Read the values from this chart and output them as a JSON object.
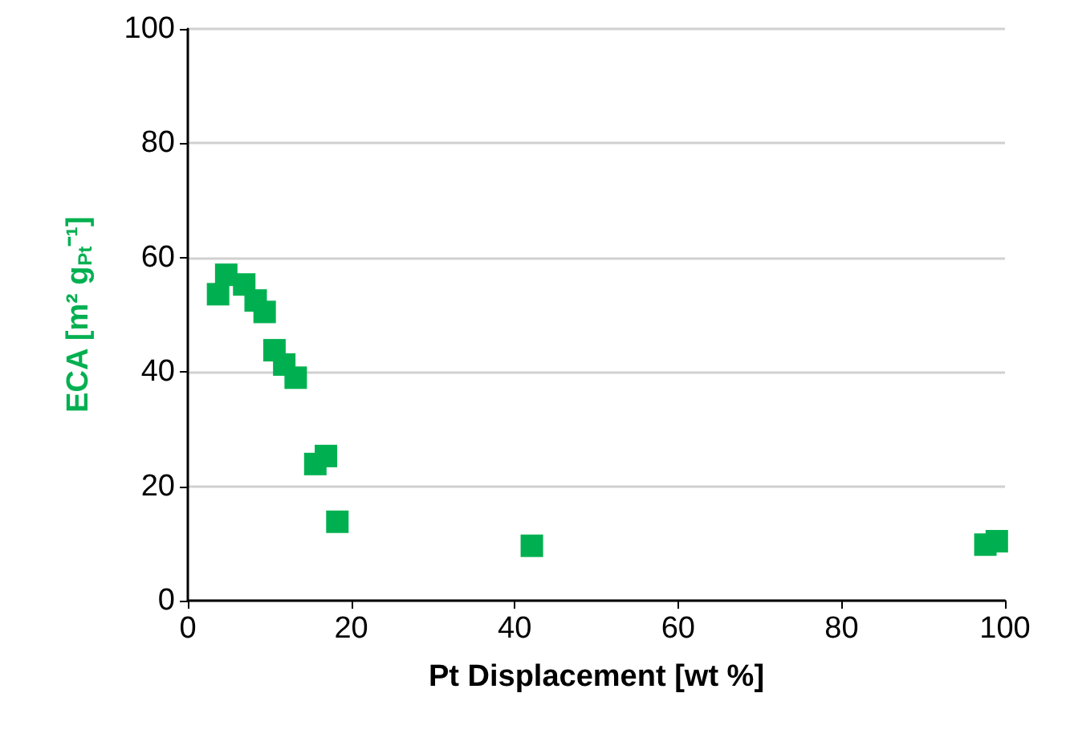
{
  "chart_data": {
    "type": "scatter",
    "xlabel": "Pt Displacement [wt %]",
    "ylabel": "ECA [m² g$_{Pt}$⁻¹]",
    "x": [
      3.7,
      4.7,
      6.9,
      8.3,
      9.4,
      10.6,
      11.8,
      13.2,
      15.6,
      16.9,
      18.3,
      42.1,
      97.6,
      99
    ],
    "series": [
      {
        "color": "#00b050",
        "values": [
          53.6,
          57,
          55.3,
          52.5,
          50.5,
          43.8,
          41.3,
          39,
          23.9,
          25.3,
          13.8,
          9.6,
          9.8,
          10.4
        ]
      }
    ],
    "xlim": [
      0,
      100
    ],
    "xticks": [
      0,
      20,
      40,
      60,
      80,
      100
    ],
    "ylim": [
      0,
      100
    ],
    "yticks": [
      0,
      20,
      40,
      60,
      80,
      100
    ],
    "grid": "y",
    "marker": "square"
  }
}
